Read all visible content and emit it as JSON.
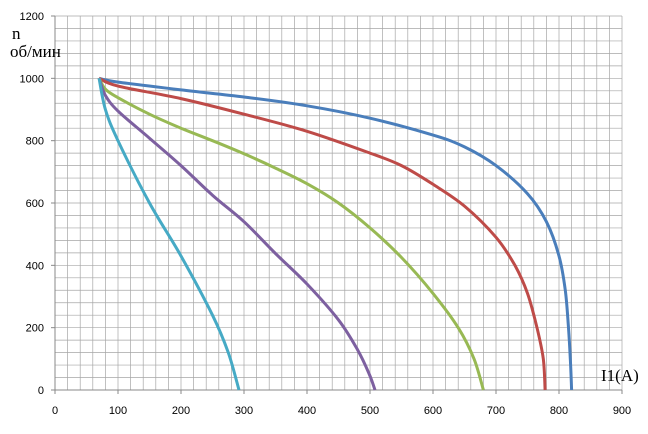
{
  "chart_data": {
    "type": "line",
    "title": "",
    "ylabel_line1": "n",
    "ylabel_line2": "об/мин",
    "xlabel": "I1(A)",
    "xlim": [
      0,
      900
    ],
    "ylim": [
      0,
      1200
    ],
    "x_ticks": [
      0,
      100,
      200,
      300,
      400,
      500,
      600,
      700,
      800,
      900
    ],
    "y_ticks": [
      0,
      200,
      400,
      600,
      800,
      1000,
      1200
    ],
    "grid": true,
    "colors": {
      "grid": "#a6a6a6",
      "axis": "#888888"
    },
    "series": [
      {
        "color": "#4a7ebb",
        "points": [
          [
            70,
            1000
          ],
          [
            100,
            988
          ],
          [
            200,
            963
          ],
          [
            300,
            940
          ],
          [
            400,
            912
          ],
          [
            500,
            872
          ],
          [
            600,
            818
          ],
          [
            650,
            780
          ],
          [
            700,
            720
          ],
          [
            750,
            630
          ],
          [
            780,
            540
          ],
          [
            800,
            430
          ],
          [
            810,
            320
          ],
          [
            815,
            200
          ],
          [
            818,
            100
          ],
          [
            820,
            0
          ]
        ]
      },
      {
        "color": "#be4b48",
        "points": [
          [
            70,
            1000
          ],
          [
            100,
            975
          ],
          [
            200,
            935
          ],
          [
            300,
            885
          ],
          [
            400,
            830
          ],
          [
            500,
            760
          ],
          [
            550,
            720
          ],
          [
            600,
            660
          ],
          [
            650,
            590
          ],
          [
            700,
            490
          ],
          [
            730,
            400
          ],
          [
            750,
            310
          ],
          [
            765,
            200
          ],
          [
            775,
            100
          ],
          [
            778,
            0
          ]
        ]
      },
      {
        "color": "#98b954",
        "points": [
          [
            70,
            1000
          ],
          [
            80,
            965
          ],
          [
            100,
            938
          ],
          [
            150,
            885
          ],
          [
            200,
            840
          ],
          [
            250,
            800
          ],
          [
            300,
            758
          ],
          [
            350,
            712
          ],
          [
            400,
            662
          ],
          [
            450,
            600
          ],
          [
            500,
            520
          ],
          [
            550,
            425
          ],
          [
            600,
            310
          ],
          [
            640,
            200
          ],
          [
            665,
            100
          ],
          [
            680,
            0
          ]
        ]
      },
      {
        "color": "#7d60a0",
        "points": [
          [
            70,
            1000
          ],
          [
            80,
            945
          ],
          [
            100,
            895
          ],
          [
            150,
            808
          ],
          [
            200,
            720
          ],
          [
            250,
            625
          ],
          [
            300,
            540
          ],
          [
            350,
            438
          ],
          [
            400,
            340
          ],
          [
            450,
            225
          ],
          [
            480,
            130
          ],
          [
            498,
            55
          ],
          [
            508,
            0
          ]
        ]
      },
      {
        "color": "#46aac5",
        "points": [
          [
            70,
            1000
          ],
          [
            80,
            900
          ],
          [
            100,
            800
          ],
          [
            150,
            600
          ],
          [
            200,
            430
          ],
          [
            250,
            240
          ],
          [
            275,
            120
          ],
          [
            292,
            0
          ]
        ]
      }
    ]
  }
}
